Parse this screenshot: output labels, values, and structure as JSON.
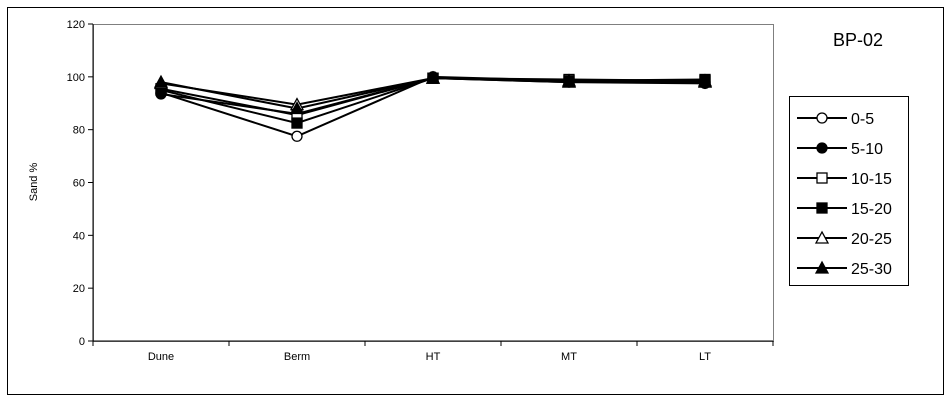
{
  "chart_data": {
    "type": "line",
    "title": "BP-02",
    "xlabel": "",
    "ylabel": "Sand %",
    "categories": [
      "Dune",
      "Berm",
      "HT",
      "MT",
      "LT"
    ],
    "ylim": [
      0,
      120
    ],
    "yticks": [
      0,
      20,
      40,
      60,
      80,
      100,
      120
    ],
    "grid": false,
    "legend_position": "right",
    "series": [
      {
        "name": "0-5",
        "marker": "circle-open",
        "values": [
          94,
          77.5,
          100,
          98.5,
          98
        ]
      },
      {
        "name": "5-10",
        "marker": "circle-filled",
        "values": [
          93.5,
          86,
          99.5,
          98,
          97.5
        ]
      },
      {
        "name": "10-15",
        "marker": "square-open",
        "values": [
          95.5,
          85.5,
          99.5,
          99,
          98.5
        ]
      },
      {
        "name": "15-20",
        "marker": "square-filled",
        "values": [
          95,
          82.5,
          99.5,
          98.5,
          99
        ]
      },
      {
        "name": "20-25",
        "marker": "triangle-open",
        "values": [
          97.5,
          89.5,
          99.5,
          98,
          98.5
        ]
      },
      {
        "name": "25-30",
        "marker": "triangle-filled",
        "values": [
          98,
          88,
          99.5,
          98.5,
          98
        ]
      }
    ],
    "line_color": "#000000"
  }
}
